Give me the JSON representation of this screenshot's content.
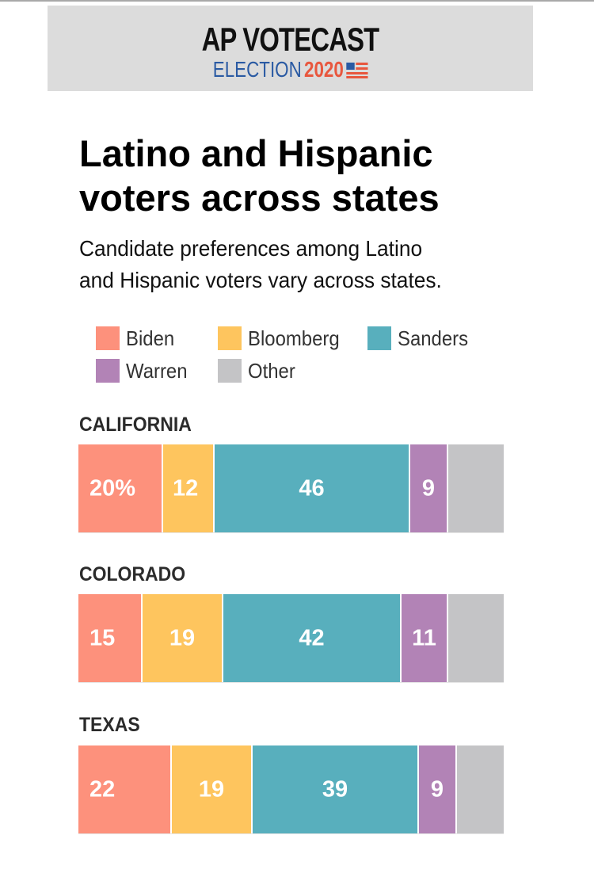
{
  "header": {
    "brand": "AP VOTECAST",
    "election_word": "ELECTION",
    "election_year": "2020",
    "flag_icon": "us-flag-icon"
  },
  "title": "Latino and Hispanic voters across states",
  "title_lines": [
    "Latino and Hispanic",
    "voters across states"
  ],
  "subtitle_lines": [
    "Candidate preferences among Latino",
    "and Hispanic voters vary across states."
  ],
  "legend": [
    {
      "label": "Biden",
      "color": "#fd917c"
    },
    {
      "label": "Bloomberg",
      "color": "#fec55e"
    },
    {
      "label": "Sanders",
      "color": "#58afbd"
    },
    {
      "label": "Warren",
      "color": "#b283b6"
    },
    {
      "label": "Other",
      "color": "#c4c4c6"
    }
  ],
  "chart_data": {
    "type": "bar",
    "orientation": "horizontal-stacked",
    "title": "Latino and Hispanic voters across states",
    "subtitle": "Candidate preferences among Latino and Hispanic voters vary across states.",
    "unit": "%",
    "categories": [
      "CALIFORNIA",
      "COLORADO",
      "TEXAS"
    ],
    "series": [
      {
        "name": "Biden",
        "color": "#fd917c",
        "values": [
          20,
          15,
          22
        ],
        "labels": [
          "20%",
          "15",
          "22"
        ]
      },
      {
        "name": "Bloomberg",
        "color": "#fec55e",
        "values": [
          12,
          19,
          19
        ],
        "labels": [
          "12",
          "19",
          "19"
        ]
      },
      {
        "name": "Sanders",
        "color": "#58afbd",
        "values": [
          46,
          42,
          39
        ],
        "labels": [
          "46",
          "42",
          "39"
        ]
      },
      {
        "name": "Warren",
        "color": "#b283b6",
        "values": [
          9,
          11,
          9
        ],
        "labels": [
          "9",
          "11",
          "9"
        ]
      },
      {
        "name": "Other",
        "color": "#c4c4c6",
        "values": [
          13,
          13,
          11
        ],
        "labels": [
          "",
          "",
          ""
        ]
      }
    ],
    "xlim": [
      0,
      100
    ],
    "legend_position": "top-left",
    "grid": false
  }
}
